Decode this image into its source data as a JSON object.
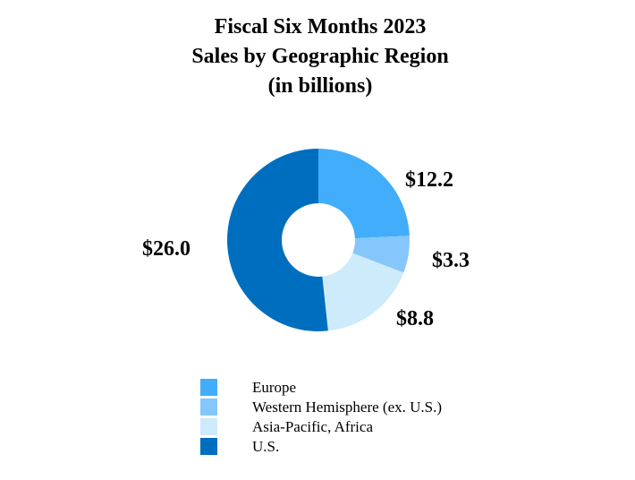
{
  "chart_data": {
    "type": "pie",
    "title_lines": [
      "Fiscal Six Months 2023",
      "Sales by Geographic Region",
      "(in billions)"
    ],
    "categories": [
      "Europe",
      "Western Hemisphere (ex. U.S.)",
      "Asia-Pacific, Africa",
      "U.S."
    ],
    "values": [
      12.2,
      3.3,
      8.8,
      26.0
    ],
    "value_labels": [
      "$12.2",
      "$3.3",
      "$8.8",
      "$26.0"
    ],
    "colors": [
      "#42ADFA",
      "#85C7FA",
      "#CDEBFB",
      "#006EBF"
    ],
    "donut": true,
    "legend_position": "bottom"
  }
}
